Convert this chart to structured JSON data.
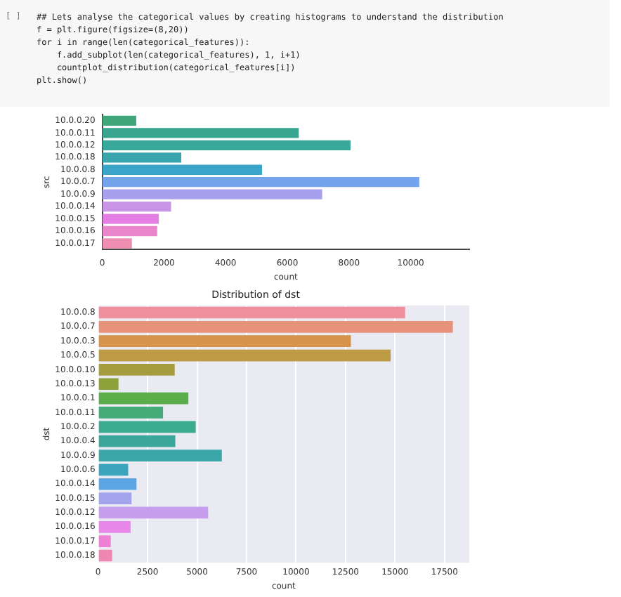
{
  "chart_data": [
    {
      "type": "bar",
      "orientation": "horizontal",
      "annotations": [
        "[ ]",
        "## Lets analyse the categorical values by creating histograms to understand the distribution",
        "f = plt.figure(figsize=(8,20))",
        "for i in range(len(categorical_features)):",
        "    f.add_subplot(len(categorical_features), 1, i+1)",
        "    countplot_distribution(categorical_features[i])",
        "plt.show()"
      ],
      "ylabel": "src",
      "xlabel": "count",
      "categories": [
        "10.0.0.20",
        "10.0.0.11",
        "10.0.0.12",
        "10.0.0.18",
        "10.0.0.8",
        "10.0.0.7",
        "10.0.0.9",
        "10.0.0.14",
        "10.0.0.15",
        "10.0.0.16",
        "10.0.0.17"
      ],
      "values": [
        1100,
        6370,
        8050,
        2560,
        5180,
        10280,
        7130,
        2230,
        1830,
        1780,
        960
      ],
      "colors": [
        "#3fa67a",
        "#3aa58f",
        "#38a89a",
        "#3aa4ac",
        "#3ba5c9",
        "#74a5ec",
        "#a7a0ec",
        "#c896e5",
        "#e57fe6",
        "#ea86cc",
        "#ee8fb2"
      ],
      "xlim": [
        0,
        11900
      ],
      "xticks": [
        0,
        2000,
        4000,
        6000,
        8000,
        10000
      ],
      "grid": false
    },
    {
      "type": "bar",
      "orientation": "horizontal",
      "title": "Distribution of dst",
      "ylabel": "dst",
      "xlabel": "count",
      "categories": [
        "10.0.0.8",
        "10.0.0.7",
        "10.0.0.3",
        "10.0.0.5",
        "10.0.0.10",
        "10.0.0.13",
        "10.0.0.1",
        "10.0.0.11",
        "10.0.0.2",
        "10.0.0.4",
        "10.0.0.9",
        "10.0.0.6",
        "10.0.0.14",
        "10.0.0.15",
        "10.0.0.12",
        "10.0.0.16",
        "10.0.0.17",
        "10.0.0.18"
      ],
      "values": [
        15510,
        17920,
        12770,
        14780,
        3870,
        1030,
        4560,
        3280,
        4930,
        3900,
        6250,
        1520,
        1940,
        1690,
        5560,
        1640,
        640,
        710
      ],
      "colors": [
        "#ef8f9d",
        "#e9927b",
        "#d6934a",
        "#bd9b45",
        "#a59c3e",
        "#8fa23a",
        "#5aae4a",
        "#45ab78",
        "#3aab8e",
        "#3aa79a",
        "#3ba6a8",
        "#3ca5be",
        "#5ba5e2",
        "#a3a4ec",
        "#c79ded",
        "#e887ea",
        "#ef80d6",
        "#f086b2"
      ],
      "xlim": [
        0,
        18750
      ],
      "xticks": [
        0,
        2500,
        5000,
        7500,
        10000,
        12500,
        15000,
        17500
      ],
      "grid": "x"
    }
  ]
}
